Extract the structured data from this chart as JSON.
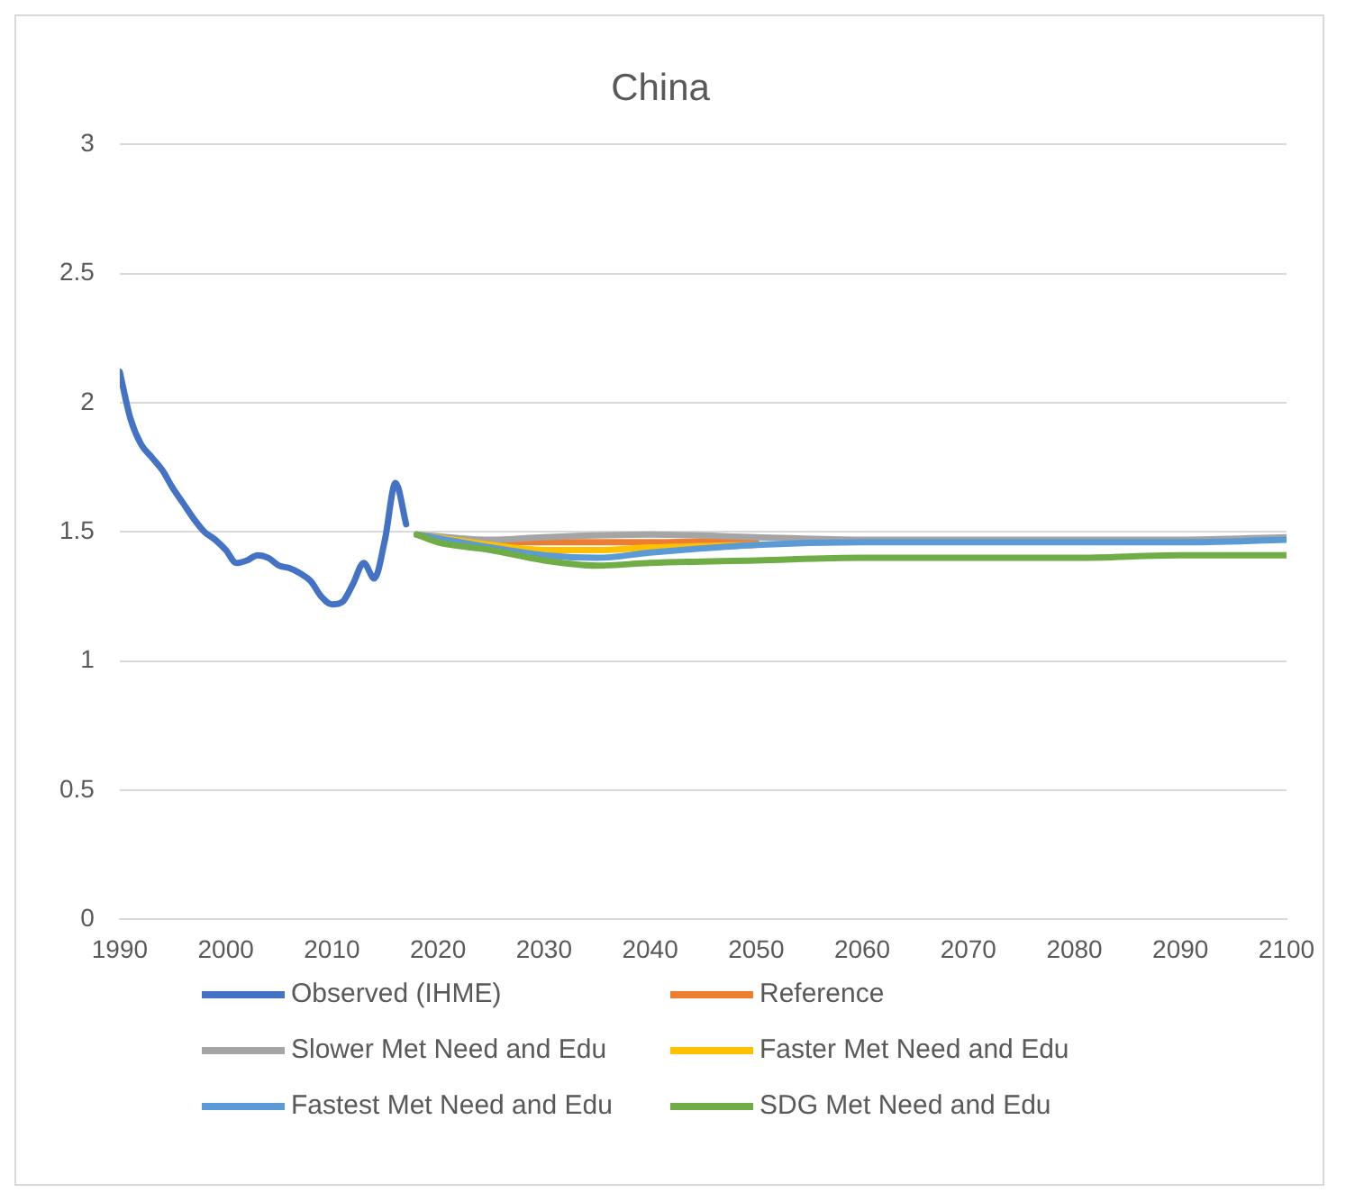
{
  "chart_data": {
    "type": "line",
    "title": "China",
    "xlim": [
      1990,
      2100
    ],
    "xticks": [
      1990,
      2000,
      2010,
      2020,
      2030,
      2040,
      2050,
      2060,
      2070,
      2080,
      2090,
      2100
    ],
    "ylim": [
      0,
      3
    ],
    "yticks": [
      0,
      0.5,
      1,
      1.5,
      2,
      2.5,
      3
    ],
    "grid": "y",
    "legend": "bottom",
    "marker": "none",
    "line_style": "solid",
    "series": [
      {
        "name": "Observed (IHME)",
        "color": "#4472c4",
        "x": [
          1990,
          1991,
          1992,
          1993,
          1994,
          1995,
          1996,
          1997,
          1998,
          1999,
          2000,
          2001,
          2002,
          2003,
          2004,
          2005,
          2006,
          2007,
          2008,
          2009,
          2010,
          2011,
          2012,
          2013,
          2014,
          2015,
          2016,
          2017
        ],
        "values": [
          2.12,
          1.94,
          1.84,
          1.79,
          1.74,
          1.67,
          1.61,
          1.55,
          1.5,
          1.47,
          1.43,
          1.38,
          1.39,
          1.41,
          1.4,
          1.37,
          1.36,
          1.34,
          1.31,
          1.25,
          1.22,
          1.23,
          1.3,
          1.38,
          1.32,
          1.47,
          1.69,
          1.53
        ]
      },
      {
        "name": "Reference",
        "color": "#ed7d31",
        "x": [
          2025,
          2030,
          2040,
          2050
        ],
        "values": [
          1.46,
          1.46,
          1.46,
          1.47
        ]
      },
      {
        "name": "Slower Met Need and Edu",
        "color": "#a5a5a5",
        "x": [
          2018,
          2025,
          2030,
          2040,
          2050,
          2060,
          2070,
          2080,
          2090,
          2100
        ],
        "values": [
          1.49,
          1.47,
          1.48,
          1.49,
          1.48,
          1.47,
          1.47,
          1.47,
          1.47,
          1.48
        ]
      },
      {
        "name": "Faster Met Need and Edu",
        "color": "#ffc000",
        "x": [
          2018,
          2025,
          2030,
          2035,
          2040,
          2050
        ],
        "values": [
          1.49,
          1.45,
          1.43,
          1.43,
          1.44,
          1.45
        ]
      },
      {
        "name": "Fastest Met Need and Edu",
        "color": "#5b9bd5",
        "x": [
          2018,
          2025,
          2030,
          2035,
          2040,
          2050,
          2060,
          2070,
          2080,
          2090,
          2100
        ],
        "values": [
          1.49,
          1.44,
          1.41,
          1.4,
          1.42,
          1.45,
          1.46,
          1.46,
          1.46,
          1.46,
          1.47
        ]
      },
      {
        "name": "SDG Met Need and Edu",
        "color": "#70ad47",
        "x": [
          2018,
          2020,
          2025,
          2030,
          2035,
          2040,
          2050,
          2060,
          2070,
          2080,
          2090,
          2100
        ],
        "values": [
          1.49,
          1.46,
          1.43,
          1.39,
          1.37,
          1.38,
          1.39,
          1.4,
          1.4,
          1.4,
          1.41,
          1.41
        ]
      }
    ]
  }
}
